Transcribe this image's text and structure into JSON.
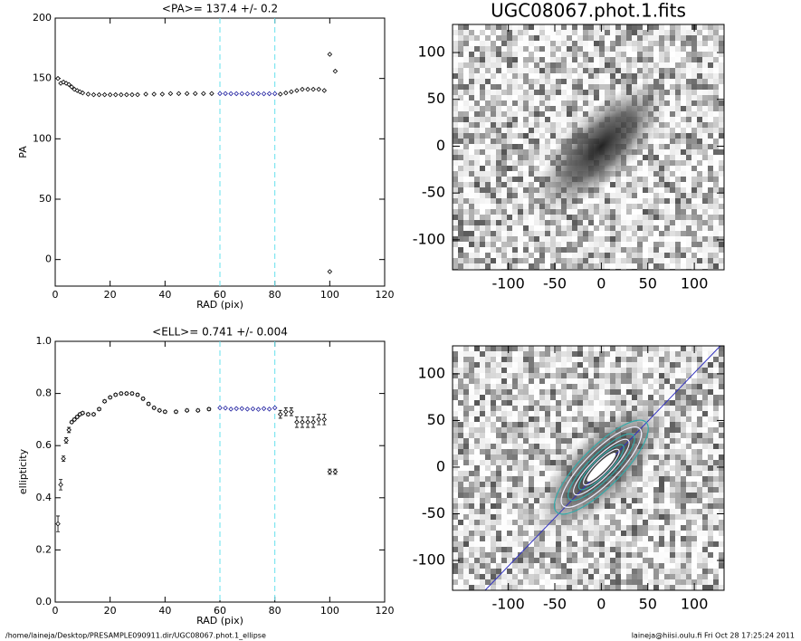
{
  "chart_data": [
    {
      "type": "scatter",
      "title": "<PA>= 137.4 +/-   0.2",
      "xlabel": "RAD (pix)",
      "ylabel": "PA",
      "xlim": [
        0,
        120
      ],
      "ylim": [
        -22,
        200
      ],
      "xticks": [
        0,
        20,
        40,
        60,
        80,
        100,
        120
      ],
      "yticks": [
        0,
        50,
        100,
        150,
        200
      ],
      "vlines": [
        60,
        80
      ],
      "vline_color": "#66e0ee",
      "series": [
        {
          "color": "#000000",
          "x": [
            1,
            2,
            3,
            4,
            5,
            6,
            7,
            8,
            9,
            10,
            12,
            14,
            16,
            18,
            20,
            22,
            24,
            26,
            28,
            30,
            33,
            36,
            39,
            42,
            45,
            48,
            51,
            54,
            57,
            82,
            84,
            86,
            88,
            90,
            92,
            94,
            96,
            98,
            100,
            100,
            102
          ],
          "values": [
            150,
            146,
            147,
            146,
            145,
            143,
            141,
            140,
            139,
            138,
            137,
            136.5,
            136.5,
            136.5,
            136.5,
            136.5,
            136.5,
            136.5,
            136.5,
            136.5,
            137,
            137,
            137,
            137.5,
            137.5,
            137.5,
            137.5,
            137.5,
            137.5,
            137,
            138,
            139,
            140,
            141,
            141,
            141,
            141,
            140,
            170,
            -10,
            156
          ]
        },
        {
          "color": "#2020a0",
          "x": [
            60,
            62,
            64,
            66,
            68,
            70,
            72,
            74,
            76,
            78,
            80
          ],
          "values": [
            137.5,
            137.5,
            137.4,
            137.4,
            137.4,
            137.3,
            137.4,
            137.4,
            137.3,
            137.4,
            137.4
          ]
        }
      ]
    },
    {
      "type": "scatter",
      "title": "<ELL>= 0.741 +/-  0.004",
      "xlabel": "RAD (pix)",
      "ylabel": "ellipticity",
      "xlim": [
        0,
        120
      ],
      "ylim": [
        0,
        1
      ],
      "xticks": [
        0,
        20,
        40,
        60,
        80,
        100,
        120
      ],
      "yticks": [
        {
          "value": 0,
          "label": "0.0"
        },
        0.2,
        0.4,
        0.6,
        0.8,
        {
          "value": 1,
          "label": "1.0"
        }
      ],
      "vlines": [
        60,
        80
      ],
      "vline_color": "#66e0ee",
      "series": [
        {
          "color": "#000000",
          "x": [
            1,
            2,
            3,
            4,
            5,
            6,
            7,
            8,
            9,
            10,
            12,
            14,
            16,
            18,
            20,
            22,
            24,
            26,
            28,
            30,
            32,
            34,
            36,
            38,
            40,
            44,
            48,
            52,
            56,
            82,
            84,
            86,
            88,
            90,
            92,
            94,
            96,
            98,
            100,
            102
          ],
          "values": [
            0.3,
            0.45,
            0.55,
            0.62,
            0.66,
            0.69,
            0.7,
            0.71,
            0.72,
            0.725,
            0.72,
            0.72,
            0.74,
            0.77,
            0.785,
            0.795,
            0.8,
            0.8,
            0.8,
            0.795,
            0.78,
            0.76,
            0.745,
            0.735,
            0.73,
            0.73,
            0.735,
            0.735,
            0.74,
            0.72,
            0.73,
            0.73,
            0.69,
            0.69,
            0.69,
            0.69,
            0.7,
            0.7,
            0.5,
            0.5
          ],
          "errors": [
            0.03,
            0.02,
            0.01,
            0.01,
            0.01,
            0.005,
            0.005,
            0.005,
            0.005,
            0.005,
            0.005,
            0.005,
            0.005,
            0.005,
            0.005,
            0.005,
            0.005,
            0.005,
            0.005,
            0.005,
            0.005,
            0.005,
            0.005,
            0.005,
            0.005,
            0.005,
            0.005,
            0.005,
            0.005,
            0.015,
            0.015,
            0.015,
            0.02,
            0.02,
            0.02,
            0.02,
            0.02,
            0.02,
            0.01,
            0.01
          ]
        },
        {
          "color": "#2020a0",
          "x": [
            60,
            62,
            64,
            66,
            68,
            70,
            72,
            74,
            76,
            78,
            80
          ],
          "values": [
            0.745,
            0.744,
            0.74,
            0.742,
            0.742,
            0.74,
            0.741,
            0.739,
            0.742,
            0.74,
            0.745
          ]
        }
      ]
    },
    {
      "type": "image",
      "title": "UGC08067.phot.1.fits",
      "xlim": [
        -160,
        132
      ],
      "ylim": [
        -132,
        130
      ],
      "xticks": [
        -100,
        -50,
        0,
        50,
        100
      ],
      "yticks": [
        -100,
        -50,
        0,
        50,
        100
      ]
    },
    {
      "type": "image",
      "xlim": [
        -160,
        132
      ],
      "ylim": [
        -132,
        130
      ],
      "xticks": [
        -100,
        -50,
        0,
        50,
        100
      ],
      "yticks": [
        -100,
        -50,
        0,
        50,
        100
      ],
      "contours": true
    }
  ],
  "footer": {
    "left": "/home/laineja/Desktop/PRESAMPLE090911.dir/UGC08067.phot.1_ellipse",
    "right": "laineja@hiisi.oulu.fi  Fri Oct 28 17:25:24 2011"
  }
}
